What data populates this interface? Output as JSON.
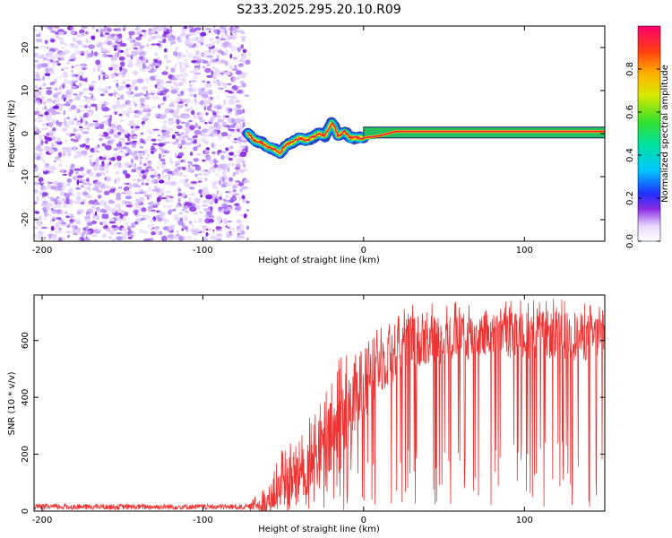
{
  "title": "S233.2025.295.20.10.R09",
  "chart_data": [
    {
      "type": "heatmap",
      "name": "spectrogram",
      "xlabel": "Height of straight line (km)",
      "ylabel": "Frequency (Hz)",
      "xlim": [
        -205,
        150
      ],
      "ylim": [
        -25,
        25
      ],
      "xticks": [
        -200,
        -100,
        0,
        100
      ],
      "yticks": [
        -20,
        -10,
        0,
        10,
        20
      ],
      "noise_region_x": [
        -205,
        -72
      ],
      "signal_track": {
        "x": [
          -72,
          -68,
          -64,
          -60,
          -56,
          -52,
          -48,
          -44,
          -40,
          -36,
          -32,
          -28,
          -24,
          -20,
          -18,
          -16,
          -12,
          -8,
          -4,
          0,
          10,
          20,
          40,
          60,
          80,
          100,
          120,
          140,
          150
        ],
        "y": [
          0,
          -1.5,
          -2.0,
          -3.0,
          -3.5,
          -4.5,
          -2.5,
          -2.0,
          -1.0,
          -1.5,
          -1.0,
          0.0,
          -0.5,
          2.5,
          1.5,
          -0.5,
          0.5,
          -1.0,
          -1.0,
          -1.0,
          -0.5,
          0.5,
          0.5,
          0.5,
          0.5,
          0.5,
          0.5,
          0.5,
          0.5
        ]
      },
      "colorbar": {
        "label": "Normalized spectral amplitude",
        "range": [
          0.0,
          1.0
        ],
        "ticks": [
          "0.0",
          "0.2",
          "0.4",
          "0.6",
          "0.8"
        ],
        "tick_values": [
          0.0,
          0.2,
          0.4,
          0.6,
          0.8
        ]
      }
    },
    {
      "type": "line",
      "name": "snr",
      "xlabel": "Height of straight line (km)",
      "ylabel": "SNR (10 * v/v)",
      "xlim": [
        -205,
        150
      ],
      "ylim": [
        0,
        760
      ],
      "xticks": [
        -200,
        -100,
        0,
        100
      ],
      "yticks": [
        0,
        200,
        400,
        600
      ],
      "color": "#ee3333",
      "envelope": {
        "x": [
          -205,
          -72,
          -62,
          -55,
          -50,
          -45,
          -40,
          -35,
          -30,
          -25,
          -20,
          -15,
          -10,
          -5,
          0,
          10,
          20,
          30,
          40,
          60,
          80,
          100,
          120,
          140,
          150
        ],
        "mean": [
          15,
          15,
          30,
          60,
          90,
          110,
          140,
          160,
          190,
          220,
          250,
          300,
          350,
          400,
          450,
          520,
          560,
          600,
          600,
          610,
          620,
          620,
          620,
          610,
          620
        ],
        "peak": [
          25,
          25,
          80,
          160,
          230,
          280,
          300,
          340,
          360,
          420,
          470,
          560,
          590,
          640,
          650,
          690,
          720,
          740,
          740,
          740,
          740,
          750,
          750,
          740,
          740
        ]
      }
    }
  ]
}
